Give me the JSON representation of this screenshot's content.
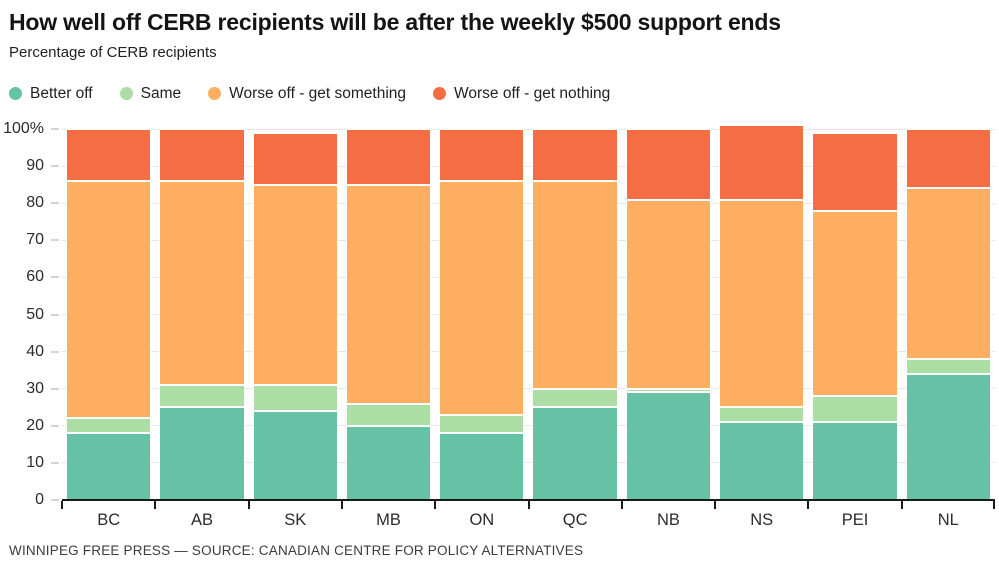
{
  "header": {
    "title": "How well off CERB recipients will be after the weekly $500 support ends",
    "subtitle": "Percentage of CERB recipients"
  },
  "footer": {
    "credit": "WINNIPEG FREE PRESS — SOURCE: CANADIAN CENTRE FOR POLICY ALTERNATIVES"
  },
  "colors": {
    "background": "#ffffff",
    "gridline": "#e6e6e6",
    "axis": "#1a1a1a",
    "tick": "#d4d4d4",
    "text": "#2b2b2b"
  },
  "chart_data": {
    "type": "bar",
    "stacked": true,
    "title": "How well off CERB recipients will be after the weekly $500 support ends",
    "subtitle": "Percentage of CERB recipients",
    "xlabel": "",
    "ylabel": "Percentage of CERB recipients",
    "ylim": [
      0,
      100
    ],
    "yticks": [
      0,
      10,
      20,
      30,
      40,
      50,
      60,
      70,
      80,
      90,
      100
    ],
    "ytick_labels": [
      "0",
      "10",
      "20",
      "30",
      "40",
      "50",
      "60",
      "70",
      "80",
      "90",
      "100%"
    ],
    "grid": true,
    "legend_position": "top",
    "categories": [
      "BC",
      "AB",
      "SK",
      "MB",
      "ON",
      "QC",
      "NB",
      "NS",
      "PEI",
      "NL"
    ],
    "series": [
      {
        "name": "Better off",
        "color": "#66c2a5",
        "values": [
          18,
          25,
          24,
          20,
          18,
          25,
          29,
          21,
          21,
          34
        ]
      },
      {
        "name": "Same",
        "color": "#abdda4",
        "values": [
          4,
          6,
          7,
          6,
          5,
          5,
          1,
          4,
          7,
          4
        ]
      },
      {
        "name": "Worse off - get something",
        "color": "#fdae61",
        "values": [
          64,
          55,
          54,
          59,
          63,
          56,
          51,
          56,
          50,
          46
        ]
      },
      {
        "name": "Worse off - get nothing",
        "color": "#f46d43",
        "values": [
          14,
          14,
          14,
          15,
          14,
          14,
          19,
          20,
          21,
          16
        ]
      }
    ],
    "bar_totals": [
      100,
      100,
      99,
      100,
      100,
      100,
      100,
      101,
      99,
      100
    ]
  }
}
